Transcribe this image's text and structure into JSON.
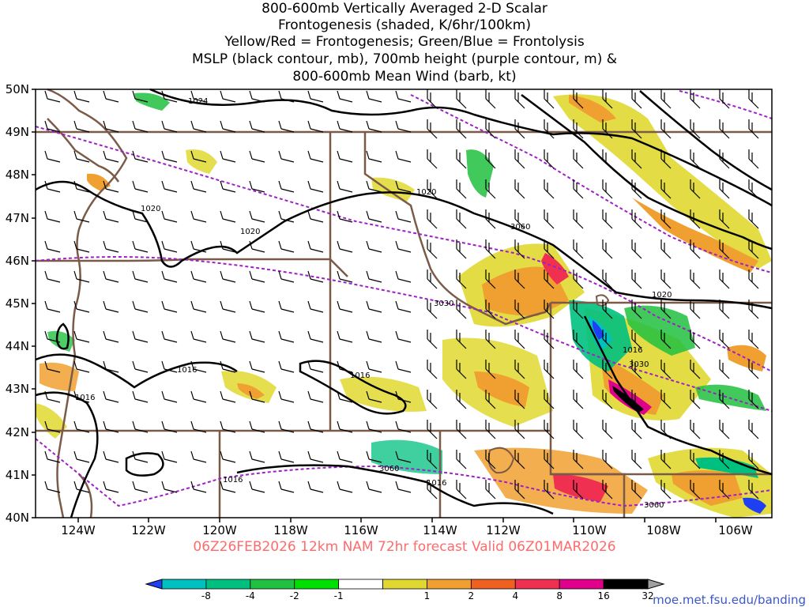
{
  "title_lines": [
    "800-600mb Vertically Averaged 2-D Scalar",
    "Frontogenesis (shaded, K/6hr/100km)",
    "Yellow/Red = Frontogenesis;  Green/Blue = Frontolysis",
    "MSLP (black contour, mb), 700mb height (purple contour, m) &",
    "800-600mb Mean Wind (barb, kt)"
  ],
  "lat_labels": [
    "50N",
    "49N",
    "48N",
    "47N",
    "46N",
    "45N",
    "44N",
    "43N",
    "42N",
    "41N",
    "40N"
  ],
  "lon_labels": [
    "124W",
    "122W",
    "120W",
    "118W",
    "116W",
    "114W",
    "112W",
    "110W",
    "108W",
    "106W"
  ],
  "valid_line": "06Z26FEB2026 12km NAM 72hr forecast Valid 06Z01MAR2026",
  "colorbar": {
    "labels": [
      "-8",
      "-4",
      "-2",
      "-1",
      "1",
      "2",
      "4",
      "8",
      "16",
      "32"
    ],
    "colors": [
      "#1f3ff2",
      "#00c0c0",
      "#00c080",
      "#20c040",
      "#00e000",
      "#ffffff",
      "#e0d830",
      "#f0a030",
      "#f06020",
      "#f03050",
      "#e0008c",
      "#000000",
      "#a0a0a0"
    ]
  },
  "contour_labels": {
    "mslp": [
      "1024",
      "1020",
      "1020",
      "1020",
      "1020",
      "1016",
      "1016",
      "1016",
      "1016",
      "1016",
      "1016"
    ],
    "height": [
      "3060",
      "3030",
      "3030",
      "3060",
      "3060"
    ]
  },
  "credit": "moe.met.fsu.edu/banding",
  "colors": {
    "mslp": "#000000",
    "height": "#a020c8",
    "borders": "#7b5a48",
    "valid_text": "#ff6b6b",
    "credit_text": "#3b57c4"
  }
}
